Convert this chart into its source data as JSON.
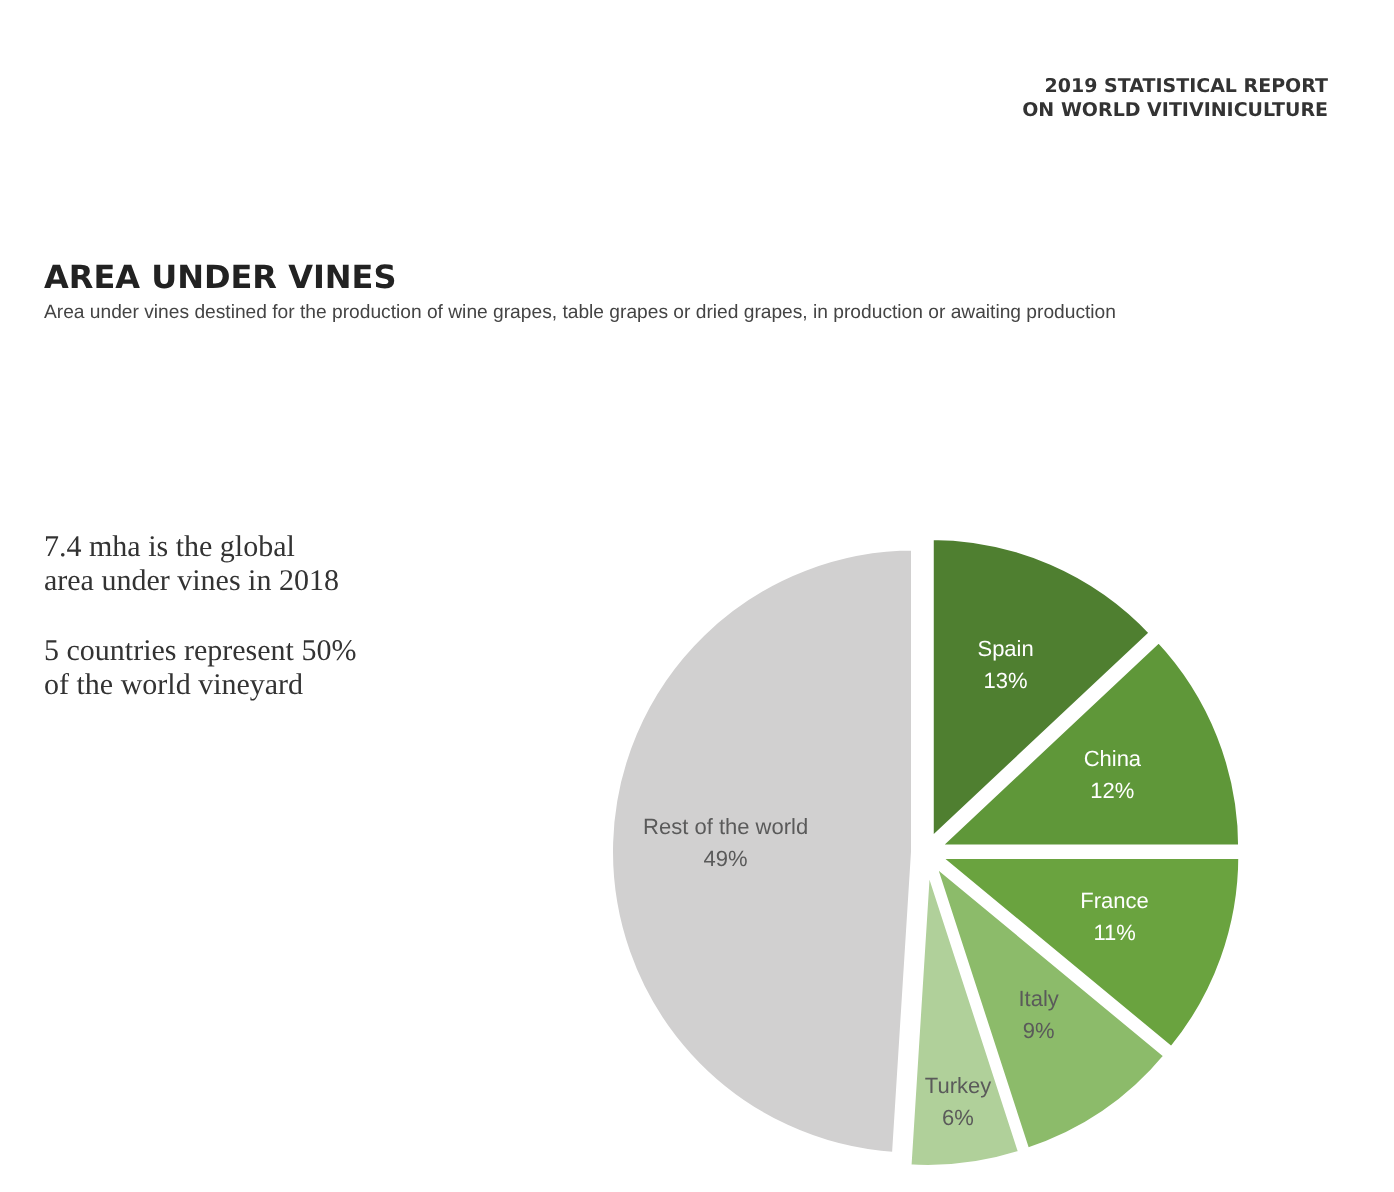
{
  "chart_data": {
    "type": "pie",
    "title": "AREA UNDER VINES",
    "subtitle": "Area under vines destined for the production of wine grapes, table grapes or dried grapes, in production or awaiting production",
    "annotations": [
      "2019 STATISTICAL REPORT\nON WORLD VITIVINICULTURE",
      "7.4 mha is the global area under vines in 2018",
      "5 countries represent 50% of the world vineyard"
    ],
    "categories": [
      "Spain",
      "China",
      "France",
      "Italy",
      "Turkey",
      "Rest of the world"
    ],
    "values": [
      13,
      12,
      11,
      9,
      6,
      49
    ],
    "value_labels": [
      "13%",
      "12%",
      "11%",
      "9%",
      "6%",
      "49%"
    ],
    "colors": [
      "#4f7f30",
      "#5f9739",
      "#6aa33f",
      "#8cbb6a",
      "#b0d09a",
      "#d1d0d0"
    ]
  }
}
